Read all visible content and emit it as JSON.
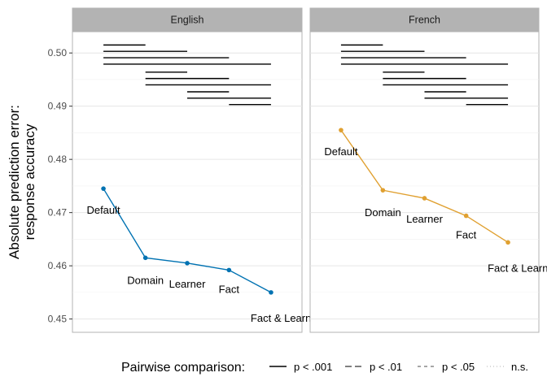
{
  "chart_data": {
    "type": "line",
    "ylabel": [
      "Absolute prediction error:",
      "response accuracy"
    ],
    "ylim": [
      0.4475,
      0.504
    ],
    "y_ticks": [
      "0.45",
      "0.46",
      "0.47",
      "0.48",
      "0.49",
      "0.50"
    ],
    "y_tick_values": [
      0.45,
      0.46,
      0.47,
      0.48,
      0.49,
      0.5
    ],
    "grid": true,
    "categories": [
      "Default",
      "Domain",
      "Learner",
      "Fact",
      "Fact & Learner"
    ],
    "panels": [
      {
        "name": "English",
        "color": "#0072B2",
        "values": [
          0.4745,
          0.4615,
          0.4605,
          0.4592,
          0.455
        ],
        "labels": [
          "Default",
          "Domain",
          "Learner",
          "Fact",
          "Fact & Learner"
        ]
      },
      {
        "name": "French",
        "color": "#E0A030",
        "values": [
          0.4855,
          0.4742,
          0.4727,
          0.4694,
          0.4644
        ],
        "labels": [
          "Default",
          "Domain",
          "Learner",
          "Fact",
          "Fact & Learner"
        ]
      }
    ],
    "comparisons": [
      {
        "from": 0,
        "to": 1,
        "y": 0.5015,
        "sig": "p < .001"
      },
      {
        "from": 0,
        "to": 2,
        "y": 0.5003,
        "sig": "p < .001"
      },
      {
        "from": 0,
        "to": 3,
        "y": 0.4991,
        "sig": "p < .001"
      },
      {
        "from": 0,
        "to": 4,
        "y": 0.4979,
        "sig": "p < .001"
      },
      {
        "from": 1,
        "to": 2,
        "y": 0.4964,
        "sig": "p < .001"
      },
      {
        "from": 1,
        "to": 3,
        "y": 0.4952,
        "sig": "p < .001"
      },
      {
        "from": 1,
        "to": 4,
        "y": 0.494,
        "sig": "p < .001"
      },
      {
        "from": 2,
        "to": 3,
        "y": 0.4927,
        "sig": "p < .001"
      },
      {
        "from": 2,
        "to": 4,
        "y": 0.4915,
        "sig": "p < .001"
      },
      {
        "from": 3,
        "to": 4,
        "y": 0.4903,
        "sig": "p < .001"
      }
    ],
    "legend": {
      "title": "Pairwise comparison:",
      "placement": "bottom",
      "items": [
        {
          "label": "p < .001",
          "style": "solid"
        },
        {
          "label": "p < .01",
          "style": "longdash"
        },
        {
          "label": "p < .05",
          "style": "dashed"
        },
        {
          "label": "n.s.",
          "style": "dotted"
        }
      ]
    }
  }
}
